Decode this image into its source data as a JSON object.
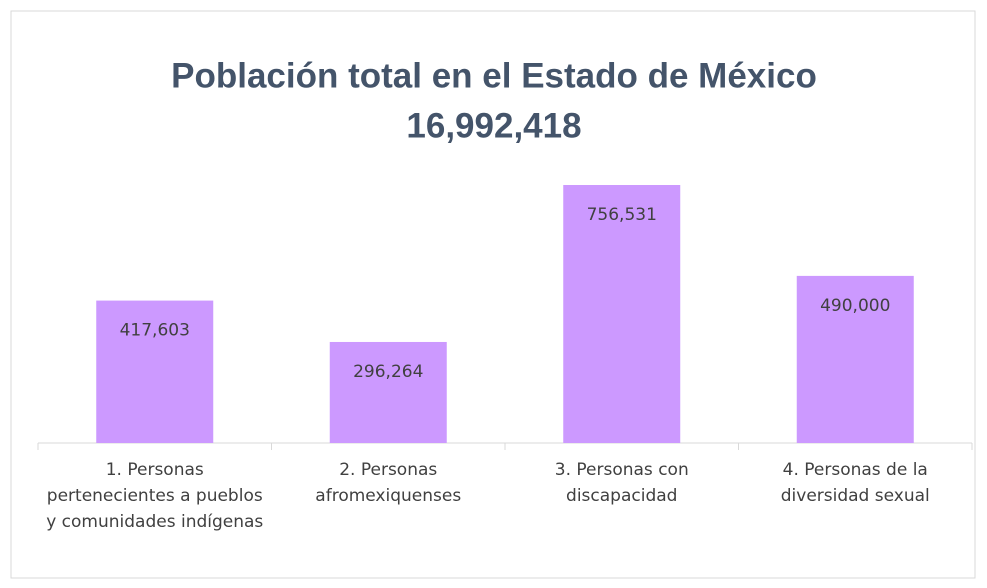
{
  "chart_data": {
    "type": "bar",
    "title": "Población total en el Estado de México",
    "subtitle": "16,992,418",
    "categories": [
      "1. Personas pertenecientes a pueblos y comunidades indígenas",
      "2. Personas afromexiquenses",
      "3. Personas con discapacidad",
      "4. Personas de la diversidad sexual"
    ],
    "values": [
      417603,
      296264,
      756531,
      490000
    ],
    "value_labels": [
      "417,603",
      "296,264",
      "756,531",
      "490,000"
    ],
    "color": "#cc99ff"
  }
}
